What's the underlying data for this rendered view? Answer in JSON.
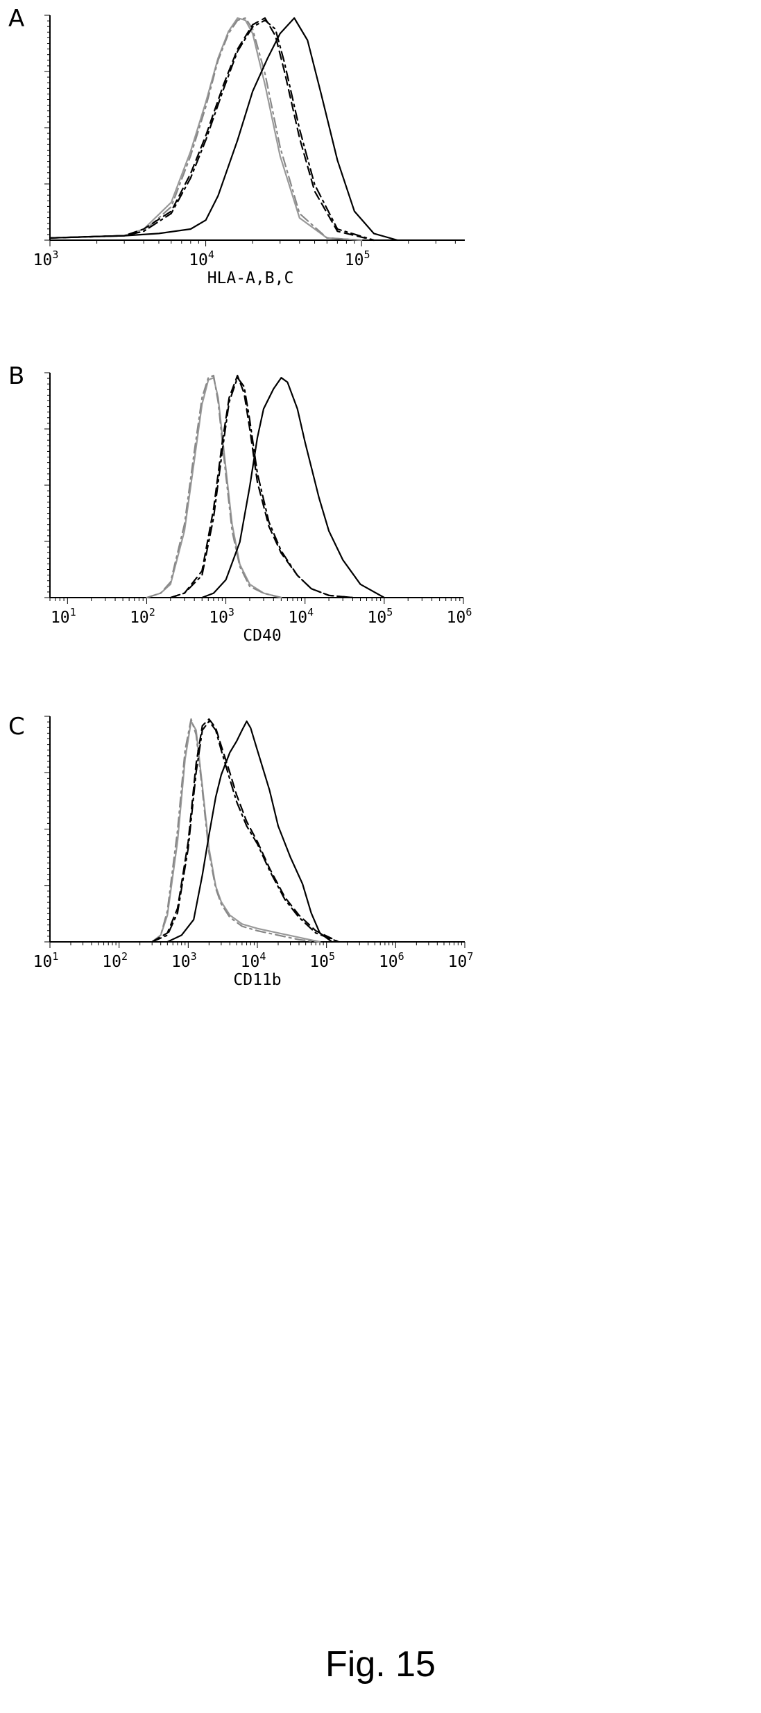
{
  "figure": {
    "caption": "Fig. 15"
  },
  "chart_data": [
    {
      "type": "line",
      "panel": "A",
      "xlabel": "HLA-A,B,C",
      "ylabel": "",
      "x_scale": "log",
      "xlim": [
        1000,
        460000
      ],
      "x_ticks": [
        {
          "value": 1000,
          "base": "10",
          "exp": "3"
        },
        {
          "value": 10000,
          "base": "10",
          "exp": "4"
        },
        {
          "value": 100000,
          "base": "10",
          "exp": "5"
        }
      ],
      "ylim": [
        0,
        1
      ],
      "series": [
        {
          "color": "#999999",
          "dash": "none",
          "x": [
            1000,
            3000,
            4000,
            6000,
            8000,
            10000,
            12000,
            14000,
            16000,
            18000,
            20000,
            24000,
            30000,
            40000,
            60000,
            100000
          ],
          "y": [
            0.01,
            0.02,
            0.05,
            0.17,
            0.4,
            0.62,
            0.82,
            0.94,
            1.0,
            0.99,
            0.93,
            0.7,
            0.38,
            0.1,
            0.01,
            0
          ]
        },
        {
          "color": "#888888",
          "dash": "14,6,3,6",
          "x": [
            1000,
            3000,
            4000,
            6000,
            8000,
            10000,
            12000,
            14000,
            16000,
            18000,
            20000,
            24000,
            30000,
            40000,
            60000,
            100000
          ],
          "y": [
            0.01,
            0.02,
            0.04,
            0.15,
            0.38,
            0.6,
            0.81,
            0.93,
            0.99,
            1.0,
            0.95,
            0.75,
            0.42,
            0.12,
            0.01,
            0
          ]
        },
        {
          "color": "#000000",
          "dash": "12,7",
          "x": [
            1000,
            3000,
            4000,
            6000,
            8000,
            10000,
            13000,
            16000,
            20000,
            24000,
            28000,
            32000,
            40000,
            50000,
            70000,
            120000
          ],
          "y": [
            0.01,
            0.02,
            0.05,
            0.13,
            0.3,
            0.47,
            0.7,
            0.86,
            0.97,
            1.0,
            0.92,
            0.76,
            0.46,
            0.22,
            0.04,
            0
          ]
        },
        {
          "color": "#000000",
          "dash": "14,6,3,6",
          "x": [
            1000,
            3000,
            4000,
            6000,
            8000,
            10000,
            13000,
            16000,
            20000,
            24000,
            28000,
            32000,
            40000,
            50000,
            70000,
            120000
          ],
          "y": [
            0.01,
            0.02,
            0.04,
            0.12,
            0.28,
            0.45,
            0.68,
            0.85,
            0.96,
            0.99,
            0.95,
            0.8,
            0.5,
            0.25,
            0.05,
            0
          ]
        },
        {
          "color": "#000000",
          "dash": "none",
          "x": [
            1000,
            3000,
            5000,
            8000,
            10000,
            12000,
            16000,
            20000,
            25000,
            30000,
            37000,
            45000,
            55000,
            70000,
            90000,
            120000,
            170000
          ],
          "y": [
            0.01,
            0.02,
            0.03,
            0.05,
            0.09,
            0.2,
            0.45,
            0.67,
            0.82,
            0.93,
            1.0,
            0.9,
            0.66,
            0.36,
            0.13,
            0.03,
            0
          ]
        }
      ]
    },
    {
      "type": "line",
      "panel": "B",
      "xlabel": "CD40",
      "ylabel": "",
      "x_scale": "log",
      "xlim": [
        6,
        1000000
      ],
      "x_ticks": [
        {
          "value": 10,
          "base": "10",
          "exp": "1"
        },
        {
          "value": 100,
          "base": "10",
          "exp": "2"
        },
        {
          "value": 1000,
          "base": "10",
          "exp": "3"
        },
        {
          "value": 10000,
          "base": "10",
          "exp": "4"
        },
        {
          "value": 100000,
          "base": "10",
          "exp": "5"
        },
        {
          "value": 1000000,
          "base": "10",
          "exp": "6"
        }
      ],
      "ylim": [
        0,
        1
      ],
      "series": [
        {
          "color": "#999999",
          "dash": "none",
          "x": [
            100,
            150,
            200,
            300,
            400,
            500,
            600,
            700,
            800,
            1000,
            1200,
            1500,
            2000,
            3000,
            5000
          ],
          "y": [
            0,
            0.02,
            0.06,
            0.3,
            0.62,
            0.87,
            0.98,
            0.99,
            0.9,
            0.58,
            0.33,
            0.15,
            0.06,
            0.02,
            0
          ]
        },
        {
          "color": "#888888",
          "dash": "14,6,3,6",
          "x": [
            100,
            150,
            200,
            300,
            400,
            500,
            600,
            700,
            800,
            1000,
            1200,
            1500,
            2000,
            3000,
            5000
          ],
          "y": [
            0,
            0.02,
            0.07,
            0.33,
            0.66,
            0.9,
            0.99,
            1.0,
            0.88,
            0.55,
            0.3,
            0.14,
            0.05,
            0.02,
            0
          ]
        },
        {
          "color": "#000000",
          "dash": "12,7",
          "x": [
            200,
            300,
            500,
            700,
            900,
            1100,
            1400,
            1700,
            2000,
            2500,
            3500,
            5000,
            8000,
            12000,
            20000,
            40000
          ],
          "y": [
            0,
            0.02,
            0.12,
            0.4,
            0.7,
            0.9,
            1.0,
            0.92,
            0.76,
            0.52,
            0.32,
            0.2,
            0.1,
            0.04,
            0.01,
            0
          ]
        },
        {
          "color": "#000000",
          "dash": "14,6,3,6",
          "x": [
            200,
            300,
            500,
            700,
            900,
            1100,
            1400,
            1700,
            2000,
            2500,
            3500,
            5000,
            8000,
            12000,
            20000,
            40000
          ],
          "y": [
            0,
            0.02,
            0.1,
            0.36,
            0.66,
            0.88,
            0.99,
            0.95,
            0.8,
            0.56,
            0.34,
            0.21,
            0.1,
            0.04,
            0.01,
            0
          ]
        },
        {
          "color": "#000000",
          "dash": "none",
          "x": [
            500,
            700,
            1000,
            1500,
            2000,
            2500,
            3000,
            4000,
            5000,
            6000,
            8000,
            10000,
            15000,
            20000,
            30000,
            50000,
            100000
          ],
          "y": [
            0,
            0.02,
            0.08,
            0.25,
            0.5,
            0.72,
            0.85,
            0.94,
            0.99,
            0.97,
            0.85,
            0.7,
            0.45,
            0.3,
            0.17,
            0.06,
            0
          ]
        }
      ]
    },
    {
      "type": "line",
      "panel": "C",
      "xlabel": "CD11b",
      "ylabel": "",
      "x_scale": "log",
      "xlim": [
        10,
        10000000
      ],
      "x_ticks": [
        {
          "value": 10,
          "base": "10",
          "exp": "1"
        },
        {
          "value": 100,
          "base": "10",
          "exp": "2"
        },
        {
          "value": 1000,
          "base": "10",
          "exp": "3"
        },
        {
          "value": 10000,
          "base": "10",
          "exp": "4"
        },
        {
          "value": 100000,
          "base": "10",
          "exp": "5"
        },
        {
          "value": 1000000,
          "base": "10",
          "exp": "6"
        },
        {
          "value": 10000000,
          "base": "10",
          "exp": "7"
        }
      ],
      "ylim": [
        0,
        1
      ],
      "series": [
        {
          "color": "#999999",
          "dash": "none",
          "x": [
            300,
            400,
            500,
            700,
            900,
            1100,
            1300,
            1600,
            2000,
            2500,
            3000,
            4000,
            6000,
            10000,
            20000,
            40000,
            80000
          ],
          "y": [
            0,
            0.03,
            0.12,
            0.45,
            0.82,
            0.99,
            0.95,
            0.7,
            0.42,
            0.25,
            0.18,
            0.12,
            0.08,
            0.06,
            0.04,
            0.02,
            0
          ]
        },
        {
          "color": "#888888",
          "dash": "14,6,3,6",
          "x": [
            300,
            400,
            500,
            700,
            900,
            1100,
            1300,
            1600,
            2000,
            2500,
            3000,
            4000,
            6000,
            10000,
            20000,
            40000,
            80000
          ],
          "y": [
            0,
            0.03,
            0.14,
            0.5,
            0.86,
            1.0,
            0.93,
            0.68,
            0.4,
            0.24,
            0.17,
            0.11,
            0.07,
            0.05,
            0.03,
            0.01,
            0
          ]
        },
        {
          "color": "#000000",
          "dash": "12,7",
          "x": [
            300,
            500,
            700,
            1000,
            1300,
            1600,
            2000,
            2500,
            3000,
            4000,
            5000,
            7000,
            10000,
            15000,
            25000,
            40000,
            70000,
            150000
          ],
          "y": [
            0,
            0.04,
            0.15,
            0.45,
            0.8,
            0.97,
            1.0,
            0.96,
            0.88,
            0.76,
            0.66,
            0.54,
            0.45,
            0.33,
            0.2,
            0.12,
            0.05,
            0
          ]
        },
        {
          "color": "#000000",
          "dash": "14,6,3,6",
          "x": [
            300,
            500,
            700,
            1000,
            1300,
            1600,
            2000,
            2500,
            3000,
            4000,
            5000,
            7000,
            10000,
            15000,
            25000,
            40000,
            70000,
            150000
          ],
          "y": [
            0,
            0.03,
            0.13,
            0.42,
            0.76,
            0.95,
            0.99,
            0.95,
            0.86,
            0.73,
            0.63,
            0.52,
            0.44,
            0.32,
            0.19,
            0.11,
            0.04,
            0
          ]
        },
        {
          "color": "#000000",
          "dash": "none",
          "x": [
            500,
            800,
            1200,
            1600,
            2000,
            2500,
            3000,
            4000,
            5000,
            6000,
            7000,
            8000,
            10000,
            15000,
            20000,
            30000,
            45000,
            60000,
            80000,
            120000
          ],
          "y": [
            0,
            0.03,
            0.1,
            0.3,
            0.48,
            0.65,
            0.75,
            0.85,
            0.9,
            0.95,
            0.99,
            0.96,
            0.86,
            0.68,
            0.52,
            0.38,
            0.26,
            0.13,
            0.04,
            0
          ]
        }
      ]
    }
  ]
}
